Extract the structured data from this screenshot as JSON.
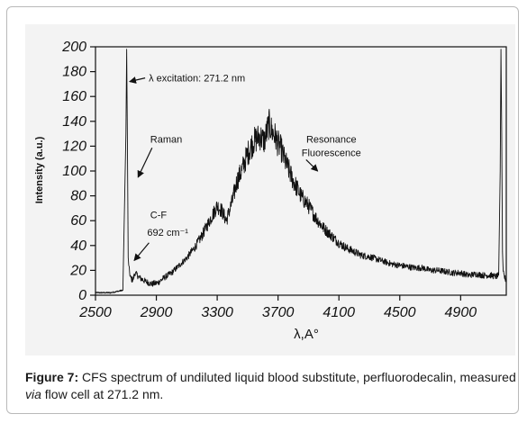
{
  "caption": {
    "label": "Figure 7:",
    "text_before_italic": " CFS spectrum of undiluted liquid blood substitute, perfluorodecalin, measured ",
    "italic": "via",
    "text_after_italic": " flow cell at 271.2 nm."
  },
  "chart_data": {
    "type": "line",
    "title": "",
    "xlabel": "λ,A°",
    "ylabel": "Intensity (a.u.)",
    "xlim": [
      2500,
      5200
    ],
    "ylim": [
      0,
      200
    ],
    "x_ticks": [
      2500,
      2900,
      3300,
      3700,
      4100,
      4500,
      4900
    ],
    "y_ticks": [
      0,
      20,
      40,
      60,
      80,
      100,
      120,
      140,
      160,
      180,
      200
    ],
    "grid": false,
    "legend": "none",
    "series": [
      {
        "x": [
          2500,
          2560,
          2600,
          2640,
          2680,
          2700,
          2705,
          2710,
          2715,
          2720,
          2730,
          2745,
          2760,
          2790,
          2830,
          2870,
          2910,
          2950,
          3000,
          3050,
          3100,
          3150,
          3200,
          3250,
          3300,
          3330,
          3360,
          3400,
          3430,
          3460,
          3500,
          3540,
          3580,
          3610,
          3640,
          3660,
          3680,
          3700,
          3720,
          3740,
          3760,
          3800,
          3850,
          3900,
          3950,
          4000,
          4050,
          4100,
          4150,
          4200,
          4250,
          4300,
          4350,
          4400,
          4450,
          4500,
          4550,
          4600,
          4650,
          4700,
          4750,
          4800,
          4850,
          4900,
          4950,
          5000,
          5050,
          5100,
          5130,
          5150,
          5160,
          5165,
          5170,
          5175,
          5180,
          5190,
          5200
        ],
        "y": [
          2,
          2,
          2,
          3,
          4,
          130,
          198,
          120,
          30,
          22,
          14,
          12,
          18,
          14,
          11,
          9,
          10,
          14,
          18,
          24,
          30,
          38,
          48,
          60,
          72,
          68,
          60,
          76,
          92,
          100,
          114,
          124,
          128,
          124,
          138,
          132,
          128,
          122,
          118,
          110,
          104,
          92,
          80,
          72,
          62,
          54,
          48,
          42,
          38,
          35,
          32,
          31,
          29,
          27,
          25,
          24,
          23,
          22,
          22,
          20,
          20,
          19,
          18,
          18,
          16,
          17,
          16,
          16,
          15,
          16,
          100,
          198,
          130,
          35,
          18,
          14,
          12
        ]
      }
    ],
    "annotations": [
      {
        "text": "λ excitation: 271.2 nm",
        "x": 2850,
        "y": 172,
        "arrow_to": [
          2725,
          172
        ]
      },
      {
        "text": "Raman",
        "x": 2860,
        "y": 123,
        "arrow_to": [
          2780,
          95
        ]
      },
      {
        "text": "Resonance",
        "x": 4050,
        "y": 123
      },
      {
        "text": "Fluorescence",
        "x": 4050,
        "y": 112,
        "arrow_to": [
          3960,
          100
        ]
      },
      {
        "text": "C-F",
        "x": 2860,
        "y": 62
      },
      {
        "text": "692 cm⁻¹",
        "x": 2840,
        "y": 48,
        "arrow_to": [
          2755,
          28
        ]
      }
    ]
  }
}
